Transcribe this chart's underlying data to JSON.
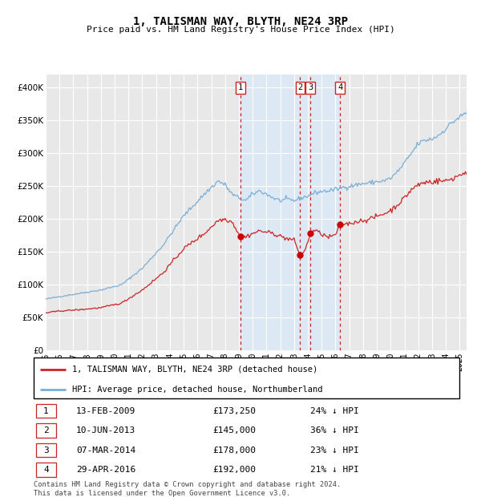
{
  "title": "1, TALISMAN WAY, BLYTH, NE24 3RP",
  "subtitle": "Price paid vs. HM Land Registry's House Price Index (HPI)",
  "legend_label_red": "1, TALISMAN WAY, BLYTH, NE24 3RP (detached house)",
  "legend_label_blue": "HPI: Average price, detached house, Northumberland",
  "footer": "Contains HM Land Registry data © Crown copyright and database right 2024.\nThis data is licensed under the Open Government Licence v3.0.",
  "sales": [
    {
      "num": 1,
      "date": "13-FEB-2009",
      "price": 173250,
      "hpi_pct": "24% ↓ HPI",
      "date_decimal": 2009.12
    },
    {
      "num": 2,
      "date": "10-JUN-2013",
      "price": 145000,
      "hpi_pct": "36% ↓ HPI",
      "date_decimal": 2013.44
    },
    {
      "num": 3,
      "date": "07-MAR-2014",
      "price": 178000,
      "hpi_pct": "23% ↓ HPI",
      "date_decimal": 2014.18
    },
    {
      "num": 4,
      "date": "29-APR-2016",
      "price": 192000,
      "hpi_pct": "21% ↓ HPI",
      "date_decimal": 2016.33
    }
  ],
  "hpi_color": "#7aaed6",
  "price_color": "#cc2222",
  "marker_color": "#cc0000",
  "dashed_color": "#cc2222",
  "shade_color": "#dce9f5",
  "bg_color": "#e8e8e8",
  "ylim": [
    0,
    420000
  ],
  "xlim_start": 1995.0,
  "xlim_end": 2025.5,
  "yticks": [
    0,
    50000,
    100000,
    150000,
    200000,
    250000,
    300000,
    350000,
    400000
  ],
  "xticks": [
    1995,
    1996,
    1997,
    1998,
    1999,
    2000,
    2001,
    2002,
    2003,
    2004,
    2005,
    2006,
    2007,
    2008,
    2009,
    2010,
    2011,
    2012,
    2013,
    2014,
    2015,
    2016,
    2017,
    2018,
    2019,
    2020,
    2021,
    2022,
    2023,
    2024,
    2025
  ],
  "hpi_waypoints": {
    "1995.0": 78000,
    "1996.0": 82000,
    "1997.5": 87000,
    "1999.0": 92000,
    "2000.5": 100000,
    "2002.0": 125000,
    "2003.5": 160000,
    "2005.0": 205000,
    "2006.5": 238000,
    "2007.5": 258000,
    "2008.0": 252000,
    "2008.5": 238000,
    "2009.0": 232000,
    "2009.5": 228000,
    "2010.0": 238000,
    "2010.5": 243000,
    "2011.0": 238000,
    "2011.5": 232000,
    "2012.0": 228000,
    "2012.5": 230000,
    "2013.0": 228000,
    "2013.5": 232000,
    "2014.0": 235000,
    "2014.5": 240000,
    "2015.0": 242000,
    "2015.5": 243000,
    "2016.0": 245000,
    "2016.5": 248000,
    "2017.0": 250000,
    "2017.5": 252000,
    "2018.0": 254000,
    "2018.5": 255000,
    "2019.0": 257000,
    "2019.5": 258000,
    "2020.0": 262000,
    "2020.5": 272000,
    "2021.0": 285000,
    "2021.5": 300000,
    "2022.0": 315000,
    "2022.5": 320000,
    "2023.0": 322000,
    "2023.5": 328000,
    "2024.0": 338000,
    "2024.5": 348000,
    "2025.5": 362000
  },
  "price_waypoints": {
    "1995.0": 57000,
    "1996.0": 60000,
    "1997.5": 62000,
    "1999.0": 65000,
    "2000.5": 72000,
    "2002.0": 92000,
    "2003.5": 118000,
    "2005.0": 155000,
    "2006.5": 178000,
    "2007.5": 198000,
    "2008.0": 200000,
    "2008.5": 196000,
    "2009.12": 173250,
    "2009.5": 173000,
    "2010.0": 178000,
    "2010.5": 182000,
    "2011.0": 180000,
    "2011.5": 178000,
    "2012.0": 174000,
    "2012.5": 170000,
    "2013.0": 168000,
    "2013.44": 145000,
    "2013.8": 152000,
    "2014.18": 178000,
    "2014.5": 183000,
    "2015.0": 177000,
    "2015.5": 172000,
    "2016.0": 176000,
    "2016.33": 192000,
    "2017.0": 193000,
    "2017.5": 196000,
    "2018.0": 198000,
    "2018.5": 200000,
    "2019.0": 204000,
    "2019.5": 208000,
    "2020.0": 213000,
    "2020.5": 222000,
    "2021.0": 232000,
    "2021.5": 245000,
    "2022.0": 252000,
    "2022.5": 256000,
    "2023.0": 257000,
    "2023.5": 258000,
    "2024.0": 258000,
    "2024.5": 262000,
    "2025.5": 272000
  }
}
